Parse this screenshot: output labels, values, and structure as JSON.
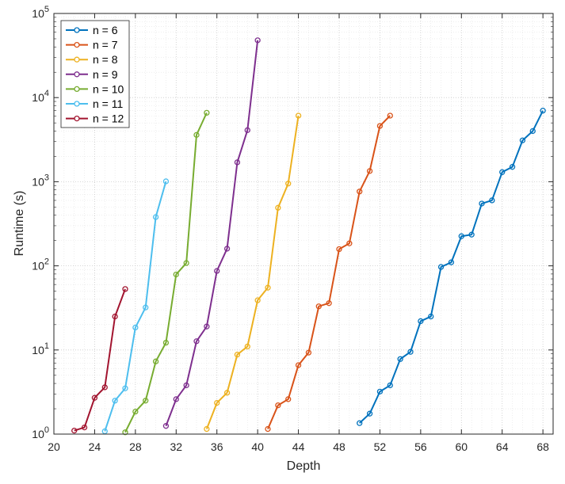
{
  "chart_data": {
    "type": "line",
    "title": "",
    "xlabel": "Depth",
    "ylabel": "Runtime (s)",
    "xlim": [
      20,
      69
    ],
    "ylim": [
      1,
      100000
    ],
    "yscale": "log",
    "grid": true,
    "legend_position": "top-left",
    "x_ticks": [
      20,
      24,
      28,
      32,
      36,
      40,
      44,
      48,
      52,
      56,
      60,
      64,
      68
    ],
    "x_tick_labels": [
      "20",
      "24",
      "28",
      "32",
      "36",
      "40",
      "44",
      "48",
      "52",
      "56",
      "60",
      "64",
      "68"
    ],
    "y_ticks": [
      1,
      10,
      100,
      1000,
      10000,
      100000
    ],
    "y_tick_labels": [
      {
        "base": "10",
        "exp": "0"
      },
      {
        "base": "10",
        "exp": "1"
      },
      {
        "base": "10",
        "exp": "2"
      },
      {
        "base": "10",
        "exp": "3"
      },
      {
        "base": "10",
        "exp": "4"
      },
      {
        "base": "10",
        "exp": "5"
      }
    ],
    "series": [
      {
        "name": "n = 6",
        "color": "#0072BD",
        "x": [
          50,
          51,
          52,
          53,
          54,
          55,
          56,
          57,
          58,
          59,
          60,
          61,
          62,
          63,
          64,
          65,
          66,
          67,
          68
        ],
        "y": [
          1.35,
          1.75,
          3.2,
          3.8,
          7.8,
          9.5,
          22,
          25,
          97,
          110,
          225,
          235,
          550,
          600,
          1300,
          1500,
          3100,
          4000,
          7000
        ]
      },
      {
        "name": "n = 7",
        "color": "#D95319",
        "x": [
          41,
          42,
          43,
          44,
          45,
          46,
          47,
          48,
          49,
          50,
          51,
          52,
          53
        ],
        "y": [
          1.15,
          2.2,
          2.6,
          6.6,
          9.3,
          33,
          36,
          158,
          185,
          765,
          1340,
          4600,
          6100
        ]
      },
      {
        "name": "n = 8",
        "color": "#EDB120",
        "x": [
          35,
          36,
          37,
          38,
          39,
          40,
          41,
          42,
          43,
          44
        ],
        "y": [
          1.15,
          2.35,
          3.1,
          8.8,
          11,
          39,
          55,
          490,
          950,
          6100
        ]
      },
      {
        "name": "n = 9",
        "color": "#7E2F8E",
        "x": [
          31,
          32,
          33,
          34,
          35,
          36,
          37,
          38,
          39,
          40
        ],
        "y": [
          1.25,
          2.6,
          3.8,
          12.7,
          19,
          87,
          160,
          1700,
          4100,
          48000
        ]
      },
      {
        "name": "n = 10",
        "color": "#77AC30",
        "x": [
          27,
          28,
          29,
          30,
          31,
          32,
          33,
          34,
          35
        ],
        "y": [
          1.05,
          1.85,
          2.5,
          7.3,
          12.2,
          79,
          108,
          3600,
          6600
        ]
      },
      {
        "name": "n = 11",
        "color": "#4DBEEE",
        "x": [
          25,
          26,
          27,
          28,
          29,
          30,
          31
        ],
        "y": [
          1.08,
          2.5,
          3.5,
          18.5,
          32,
          380,
          1010
        ]
      },
      {
        "name": "n = 12",
        "color": "#A2142F",
        "x": [
          22,
          23,
          24,
          25,
          26,
          27
        ],
        "y": [
          1.1,
          1.2,
          2.7,
          3.6,
          25,
          53
        ]
      }
    ]
  }
}
